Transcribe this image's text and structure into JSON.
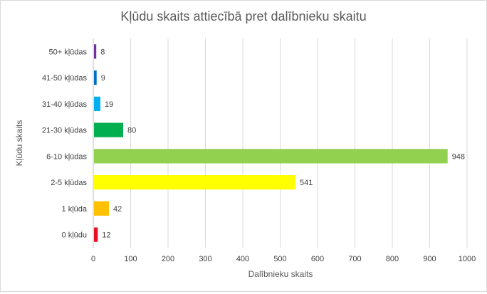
{
  "chart_data": {
    "type": "bar",
    "orientation": "horizontal",
    "title": "Kļūdu skaits attiecībā pret dalībnieku skaitu",
    "xlabel": "Dalībnieku skaits",
    "ylabel": "Kļūdu skaits",
    "xlim": [
      0,
      1000
    ],
    "xticks": [
      "0",
      "100",
      "200",
      "300",
      "400",
      "500",
      "600",
      "700",
      "800",
      "900",
      "1000"
    ],
    "grid": true,
    "legend": "none",
    "categories": [
      "0 kļūdu",
      "1 kļūda",
      "2-5 kļūdas",
      "6-10 kļūdas",
      "21-30 kļūdas",
      "31-40 kļūdas",
      "41-50 kļūdas",
      "50+ kļūdas"
    ],
    "values": [
      12,
      42,
      541,
      948,
      80,
      19,
      9,
      8
    ],
    "colors": [
      "#e81123",
      "#ffc000",
      "#ffff00",
      "#92d050",
      "#00b050",
      "#00b0f0",
      "#0070c0",
      "#7030a0"
    ]
  }
}
